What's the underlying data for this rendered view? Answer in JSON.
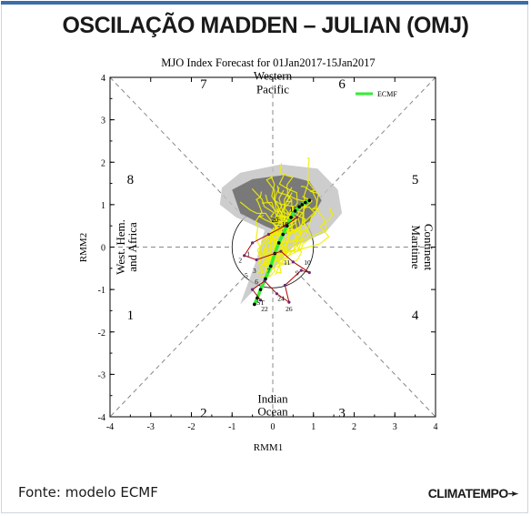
{
  "headline": "OSCILAÇÃO MADDEN – JULIAN (OMJ)",
  "footer": {
    "source": "Fonte: modelo ECMF",
    "brand": "CLIMATEMPO"
  },
  "chart_data": {
    "type": "scatter",
    "title": "MJO Index Forecast for 01Jan2017-15Jan2017",
    "xlabel": "RMM1",
    "ylabel": "RMM2",
    "xlim": [
      -4,
      4
    ],
    "ylim": [
      -4,
      4
    ],
    "xticks": [
      "-4",
      "-3",
      "-2",
      "-1",
      "0",
      "1",
      "2",
      "3",
      "4"
    ],
    "yticks": [
      "-4",
      "-3",
      "-2",
      "-1",
      "0",
      "1",
      "2",
      "3",
      "4"
    ],
    "grid": false,
    "legend": {
      "position": "top-right",
      "entries": [
        {
          "name": "ECMF",
          "color": "#33ee33"
        }
      ]
    },
    "phases": [
      "1",
      "2",
      "3",
      "4",
      "5",
      "6",
      "7",
      "8"
    ],
    "regions": {
      "top": [
        "Western",
        "Pacific"
      ],
      "bottom": [
        "Indian",
        "Ocean"
      ],
      "right": [
        "Maritime",
        "Continent"
      ],
      "left": [
        "West. Hem.",
        "and Africa"
      ]
    },
    "series": [
      {
        "name": "ECMF",
        "color": "#33ee33",
        "x": [
          -0.45,
          -0.38,
          -0.3,
          -0.18,
          -0.05,
          0.05,
          0.15,
          0.25,
          0.35,
          0.45,
          0.55,
          0.65,
          0.72,
          0.8,
          0.9
        ],
        "y": [
          -1.35,
          -1.2,
          -1.0,
          -0.75,
          -0.45,
          -0.15,
          0.1,
          0.3,
          0.5,
          0.7,
          0.85,
          0.95,
          1.0,
          1.05,
          1.1
        ]
      }
    ],
    "observed_labels": [
      "1",
      "2",
      "3",
      "5",
      "6",
      "7",
      "9",
      "10",
      "11",
      "15",
      "18",
      "20",
      "22",
      "24",
      "26",
      "ST"
    ],
    "colors": {
      "ensemble": "#f0f000",
      "spread_outer": "#c0c0c0",
      "spread_inner": "#707070",
      "observed": "#b00000",
      "observed_alt": "#6a2a7a"
    }
  }
}
